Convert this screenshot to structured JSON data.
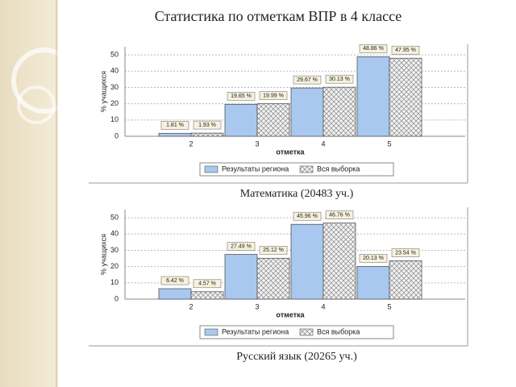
{
  "title": "Статистика по отметкам ВПР в 4 классе",
  "chart_data": [
    {
      "type": "bar",
      "caption": "Математика (20483 уч.)",
      "xlabel": "отметка",
      "ylabel": "% учащихся",
      "categories": [
        "2",
        "3",
        "4",
        "5"
      ],
      "ylim": [
        0,
        55
      ],
      "yticks": [
        0,
        10,
        20,
        30,
        40,
        50
      ],
      "grid": true,
      "series": [
        {
          "name": "Результаты региона",
          "color": "#a9c8f0",
          "hatch": false,
          "values": [
            1.81,
            19.65,
            29.67,
            48.86
          ],
          "value_labels": [
            "1.81 %",
            "19.65 %",
            "29.67 %",
            "48.86 %"
          ]
        },
        {
          "name": "Вся выборка",
          "color": "#e6e6e6",
          "hatch": true,
          "values": [
            1.93,
            19.99,
            30.13,
            47.95
          ],
          "value_labels": [
            "1.93 %",
            "19.99 %",
            "30.13 %",
            "47.95 %"
          ]
        }
      ]
    },
    {
      "type": "bar",
      "caption": "Русский язык (20265 уч.)",
      "xlabel": "отметка",
      "ylabel": "% учащихся",
      "categories": [
        "2",
        "3",
        "4",
        "5"
      ],
      "ylim": [
        0,
        55
      ],
      "yticks": [
        0,
        10,
        20,
        30,
        40,
        50
      ],
      "grid": true,
      "series": [
        {
          "name": "Результаты региона",
          "color": "#a9c8f0",
          "hatch": false,
          "values": [
            6.42,
            27.49,
            45.96,
            20.13
          ],
          "value_labels": [
            "6.42 %",
            "27.49 %",
            "45.96 %",
            "20.13 %"
          ]
        },
        {
          "name": "Вся выборка",
          "color": "#e6e6e6",
          "hatch": true,
          "values": [
            4.57,
            25.12,
            46.76,
            23.54
          ],
          "value_labels": [
            "4.57 %",
            "25.12 %",
            "46.76 %",
            "23.54 %"
          ]
        }
      ]
    }
  ]
}
